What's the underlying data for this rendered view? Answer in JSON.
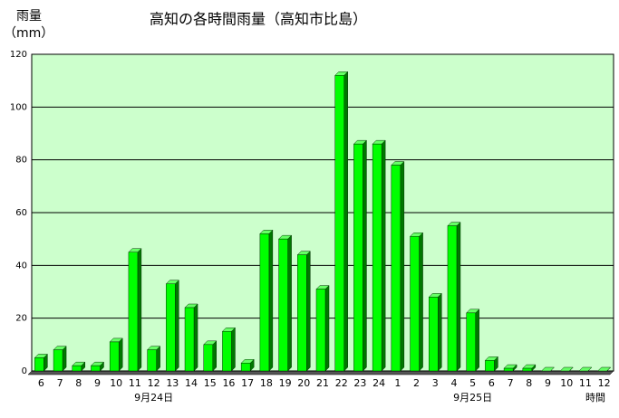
{
  "chart_data": {
    "type": "bar3d",
    "title": "高知の各時間雨量（高知市比島）",
    "y_label_line1": "雨量",
    "y_label_line2": "（mm）",
    "x_unit": "時間",
    "categories": [
      "6",
      "7",
      "8",
      "9",
      "10",
      "11",
      "12",
      "13",
      "14",
      "15",
      "16",
      "17",
      "18",
      "19",
      "20",
      "21",
      "22",
      "23",
      "24",
      "1",
      "2",
      "3",
      "4",
      "5",
      "6",
      "7",
      "8",
      "9",
      "10",
      "11",
      "12"
    ],
    "x_group_labels": [
      null,
      null,
      null,
      null,
      null,
      null,
      "9月24日",
      null,
      null,
      null,
      null,
      null,
      null,
      null,
      null,
      null,
      null,
      null,
      null,
      null,
      null,
      null,
      null,
      "9月25日",
      null,
      null,
      null,
      null,
      null,
      null,
      null
    ],
    "values": [
      5,
      8,
      2,
      2,
      11,
      45,
      8,
      33,
      24,
      10,
      15,
      3,
      52,
      50,
      44,
      31,
      112,
      86,
      86,
      78,
      51,
      28,
      55,
      22,
      4,
      1,
      1,
      0,
      0,
      0,
      0
    ],
    "color": "#00ff00",
    "background": "#ccffcc",
    "ylim": [
      0,
      120
    ],
    "yticks": [
      0,
      20,
      40,
      60,
      80,
      100,
      120
    ],
    "grid": true
  }
}
